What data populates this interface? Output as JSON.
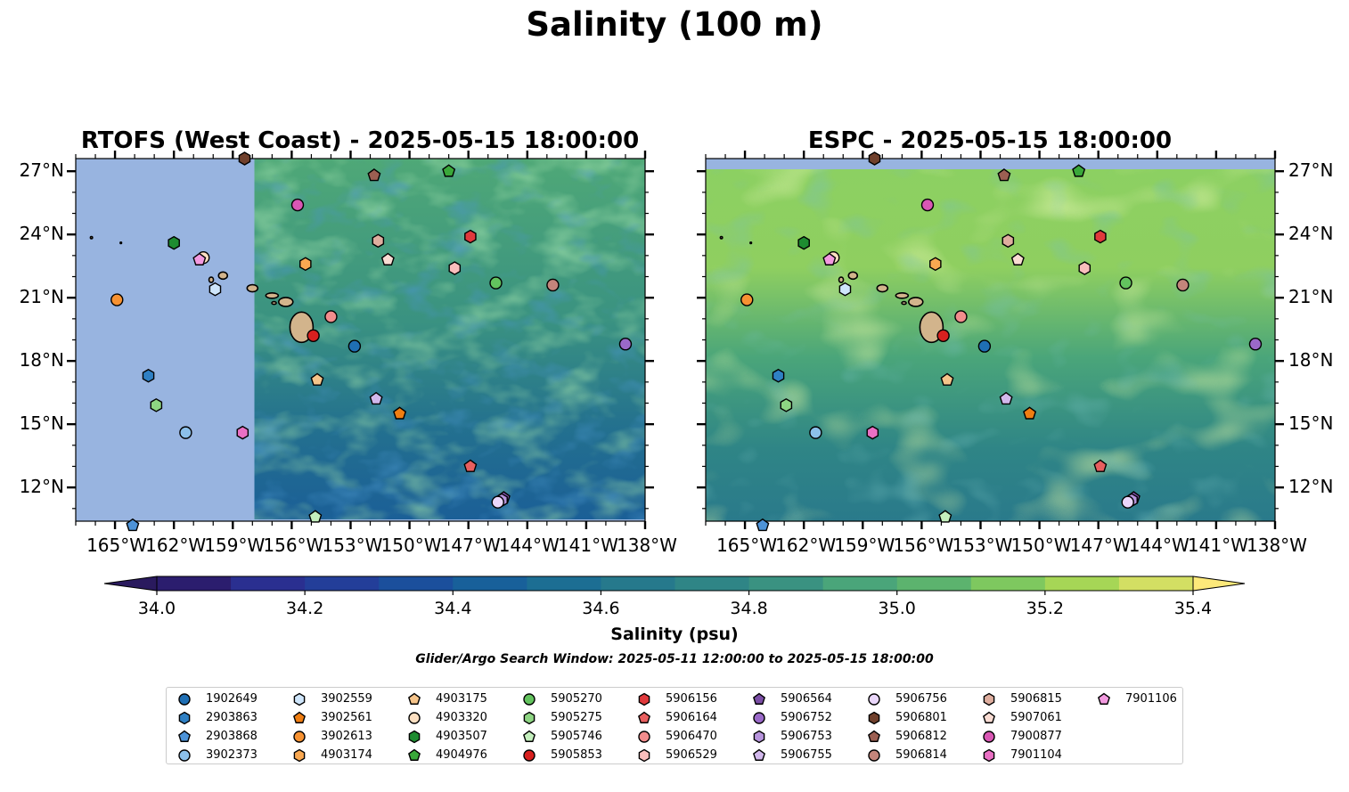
{
  "title": "Salinity (100 m)",
  "panels": [
    {
      "id": "rtofs",
      "title": "RTOFS (West Coast) - 2025-05-15 18:00:00"
    },
    {
      "id": "espc",
      "title": "ESPC - 2025-05-15 18:00:00"
    }
  ],
  "map_extent": {
    "lon_min": -167,
    "lon_max": -138,
    "lat_min": 10.4,
    "lat_max": 27.6
  },
  "rtofs_domain_west_lon": -157.9,
  "lon_ticks": [
    {
      "value": -165,
      "label": "165°W"
    },
    {
      "value": -162,
      "label": "162°W"
    },
    {
      "value": -159,
      "label": "159°W"
    },
    {
      "value": -156,
      "label": "156°W"
    },
    {
      "value": -153,
      "label": "153°W"
    },
    {
      "value": -150,
      "label": "150°W"
    },
    {
      "value": -147,
      "label": "147°W"
    },
    {
      "value": -144,
      "label": "144°W"
    },
    {
      "value": -141,
      "label": "141°W"
    },
    {
      "value": -138,
      "label": "138°W"
    }
  ],
  "lat_ticks": [
    {
      "value": 27,
      "label": "27°N"
    },
    {
      "value": 24,
      "label": "24°N"
    },
    {
      "value": 21,
      "label": "21°N"
    },
    {
      "value": 18,
      "label": "18°N"
    },
    {
      "value": 15,
      "label": "15°N"
    },
    {
      "value": 12,
      "label": "12°N"
    }
  ],
  "colorbar": {
    "title": "Salinity (psu)",
    "min": 34.0,
    "max": 35.4,
    "step": 0.1,
    "labels": [
      {
        "value": 34.0,
        "label": "34.0"
      },
      {
        "value": 34.2,
        "label": "34.2"
      },
      {
        "value": 34.4,
        "label": "34.4"
      },
      {
        "value": 34.6,
        "label": "34.6"
      },
      {
        "value": 34.8,
        "label": "34.8"
      },
      {
        "value": 35.0,
        "label": "35.0"
      },
      {
        "value": 35.2,
        "label": "35.2"
      },
      {
        "value": 35.4,
        "label": "35.4"
      }
    ],
    "colors": [
      "#2b1d6e",
      "#2a2f90",
      "#233e99",
      "#1b4f9c",
      "#18609a",
      "#1c6e93",
      "#26798c",
      "#2f8586",
      "#3a9281",
      "#4aa57a",
      "#5cb36e",
      "#7ec85f",
      "#a6d656",
      "#d3df63"
    ],
    "under_color": "#2a1a5e",
    "over_color": "#fde97a"
  },
  "land_color": "#d2b48c",
  "nodata_color": "#98b4e0",
  "search_window": "Glider/Argo Search Window: 2025-05-11 12:00:00 to 2025-05-15 18:00:00",
  "floats": [
    {
      "id": "1902649",
      "marker": "circle",
      "color": "#1f6fb4",
      "lon": -152.8,
      "lat": 18.7
    },
    {
      "id": "2903863",
      "marker": "hexagon",
      "color": "#2f80c4",
      "lon": -163.3,
      "lat": 17.3
    },
    {
      "id": "2903868",
      "marker": "pentagon",
      "color": "#4d93d8",
      "lon": -164.1,
      "lat": 10.2
    },
    {
      "id": "3902373",
      "marker": "circle",
      "color": "#8cc0ea",
      "lon": -161.4,
      "lat": 14.6
    },
    {
      "id": "3902559",
      "marker": "hexagon",
      "color": "#cfe6fb",
      "lon": -159.9,
      "lat": 21.4
    },
    {
      "id": "3902561",
      "marker": "pentagon",
      "color": "#f07e12",
      "lon": -150.5,
      "lat": 15.5
    },
    {
      "id": "3902613",
      "marker": "circle",
      "color": "#f79232",
      "lon": -164.9,
      "lat": 20.9
    },
    {
      "id": "4903174",
      "marker": "hexagon",
      "color": "#f9a851",
      "lon": -155.3,
      "lat": 22.6
    },
    {
      "id": "4903175",
      "marker": "pentagon",
      "color": "#f6c48a",
      "lon": -154.7,
      "lat": 17.1
    },
    {
      "id": "4903320",
      "marker": "circle",
      "color": "#fde0c2",
      "lon": -160.5,
      "lat": 22.9
    },
    {
      "id": "4903507",
      "marker": "hexagon",
      "color": "#1e8c30",
      "lon": -162.0,
      "lat": 23.6
    },
    {
      "id": "4904976",
      "marker": "pentagon",
      "color": "#3aa83a",
      "lon": -148.0,
      "lat": 27.0
    },
    {
      "id": "5905270",
      "marker": "circle",
      "color": "#63c35e",
      "lon": -145.6,
      "lat": 21.7
    },
    {
      "id": "5905275",
      "marker": "hexagon",
      "color": "#8ed583",
      "lon": -162.9,
      "lat": 15.9
    },
    {
      "id": "5905746",
      "marker": "pentagon",
      "color": "#c4efbd",
      "lon": -154.8,
      "lat": 10.6
    },
    {
      "id": "5905853",
      "marker": "circle",
      "color": "#d8201f",
      "lon": -154.9,
      "lat": 19.2
    },
    {
      "id": "5906156",
      "marker": "hexagon",
      "color": "#e0393c",
      "lon": -146.9,
      "lat": 23.9
    },
    {
      "id": "5906164",
      "marker": "pentagon",
      "color": "#e85f5f",
      "lon": -146.9,
      "lat": 13.0
    },
    {
      "id": "5906470",
      "marker": "circle",
      "color": "#f28d8d",
      "lon": -154.0,
      "lat": 20.1
    },
    {
      "id": "5906529",
      "marker": "hexagon",
      "color": "#f9bebc",
      "lon": -147.7,
      "lat": 22.4
    },
    {
      "id": "5906564",
      "marker": "pentagon",
      "color": "#7b4ea6",
      "lon": -145.2,
      "lat": 11.5
    },
    {
      "id": "5906752",
      "marker": "circle",
      "color": "#9a69c8",
      "lon": -139.0,
      "lat": 18.8
    },
    {
      "id": "5906753",
      "marker": "hexagon",
      "color": "#b794dc",
      "lon": -145.3,
      "lat": 11.4
    },
    {
      "id": "5906755",
      "marker": "pentagon",
      "color": "#d2b8ec",
      "lon": -151.7,
      "lat": 16.2
    },
    {
      "id": "5906756",
      "marker": "circle",
      "color": "#ead7fb",
      "lon": -145.5,
      "lat": 11.3
    },
    {
      "id": "5906801",
      "marker": "hexagon",
      "color": "#70402c",
      "lon": -158.4,
      "lat": 27.6
    },
    {
      "id": "5906812",
      "marker": "pentagon",
      "color": "#9c5f52",
      "lon": -151.8,
      "lat": 26.8
    },
    {
      "id": "5906814",
      "marker": "circle",
      "color": "#c4857b",
      "lon": -142.7,
      "lat": 21.6
    },
    {
      "id": "5906815",
      "marker": "hexagon",
      "color": "#dfae9f",
      "lon": -151.6,
      "lat": 23.7
    },
    {
      "id": "5907061",
      "marker": "pentagon",
      "color": "#f9dcd3",
      "lon": -151.1,
      "lat": 22.8
    },
    {
      "id": "7900877",
      "marker": "circle",
      "color": "#d957b4",
      "lon": -155.7,
      "lat": 25.4
    },
    {
      "id": "7901104",
      "marker": "hexagon",
      "color": "#ea70c4",
      "lon": -158.5,
      "lat": 14.6
    },
    {
      "id": "7901106",
      "marker": "pentagon",
      "color": "#f39ae0",
      "lon": -160.7,
      "lat": 22.8
    }
  ]
}
